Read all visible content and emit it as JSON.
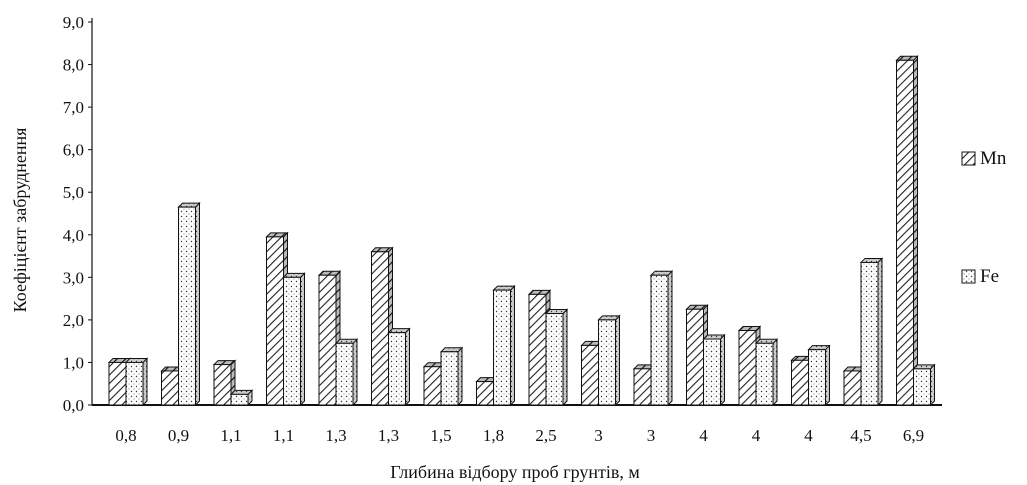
{
  "chart_data": {
    "type": "bar",
    "title": "",
    "xlabel": "Глибина відбору проб грунтів, м",
    "ylabel": "Коефіцієнт забруднення",
    "ylim": [
      0,
      9
    ],
    "yticks": [
      "0,0",
      "1,0",
      "2,0",
      "3,0",
      "4,0",
      "5,0",
      "6,0",
      "7,0",
      "8,0",
      "9,0"
    ],
    "categories": [
      "0,8",
      "0,9",
      "1,1",
      "1,1",
      "1,3",
      "1,3",
      "1,5",
      "1,8",
      "2,5",
      "3",
      "3",
      "4",
      "4",
      "4",
      "4,5",
      "6,9"
    ],
    "series": [
      {
        "name": "Mn",
        "values": [
          1.0,
          0.8,
          0.95,
          3.95,
          3.05,
          3.6,
          0.9,
          0.55,
          2.6,
          1.4,
          0.85,
          2.25,
          1.75,
          1.05,
          0.8,
          8.1
        ]
      },
      {
        "name": "Fe",
        "values": [
          1.0,
          4.65,
          0.25,
          3.0,
          1.45,
          1.7,
          1.25,
          2.7,
          2.15,
          2.0,
          3.05,
          1.55,
          1.45,
          1.3,
          3.35,
          0.85
        ]
      }
    ],
    "legend_position": "right",
    "grid": false,
    "style": "3d"
  }
}
